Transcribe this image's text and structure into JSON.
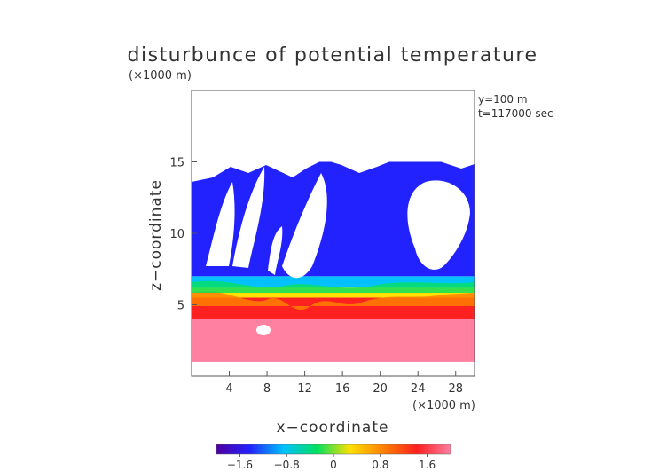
{
  "chart_data": {
    "type": "heatmap",
    "title": "disturbunce of potential temperature",
    "unit_label_top": "(×1000 m)",
    "unit_label_bottom": "(×1000 m)",
    "xlabel": "x−coordinate",
    "ylabel": "z−coordinate",
    "annotations": [
      "y=100 m",
      "t=117000 sec"
    ],
    "x_range": [
      0,
      30
    ],
    "y_range": [
      0,
      20
    ],
    "x_ticks": [
      4,
      8,
      12,
      16,
      20,
      24,
      28
    ],
    "x_tick_labels": [
      "4",
      "8",
      "12",
      "16",
      "20",
      "24",
      "28"
    ],
    "y_ticks": [
      5,
      10,
      15
    ],
    "y_tick_labels": [
      "5",
      "10",
      "15"
    ],
    "colorbar": {
      "range": [
        -2.0,
        2.0
      ],
      "ticks": [
        -1.6,
        -0.8,
        0,
        0.8,
        1.6
      ],
      "tick_labels": [
        "−1.6",
        "−0.8",
        "0",
        "0.8",
        "1.6"
      ],
      "colors": [
        "#5000a0",
        "#2222ff",
        "#00c0ff",
        "#00e060",
        "#ffe000",
        "#ff8000",
        "#ff2020",
        "#ff80a0"
      ]
    },
    "bands": [
      {
        "z_min": 1,
        "z_max": 4,
        "value": 1.8
      },
      {
        "z_min": 4,
        "z_max": 5.5,
        "value": 1.2
      },
      {
        "z_min": 5.5,
        "z_max": 6.2,
        "value": 0.4
      },
      {
        "z_min": 6.2,
        "z_max": 7,
        "value": -0.6
      },
      {
        "z_min": 7,
        "z_max": 15,
        "value": -1.5
      }
    ]
  }
}
